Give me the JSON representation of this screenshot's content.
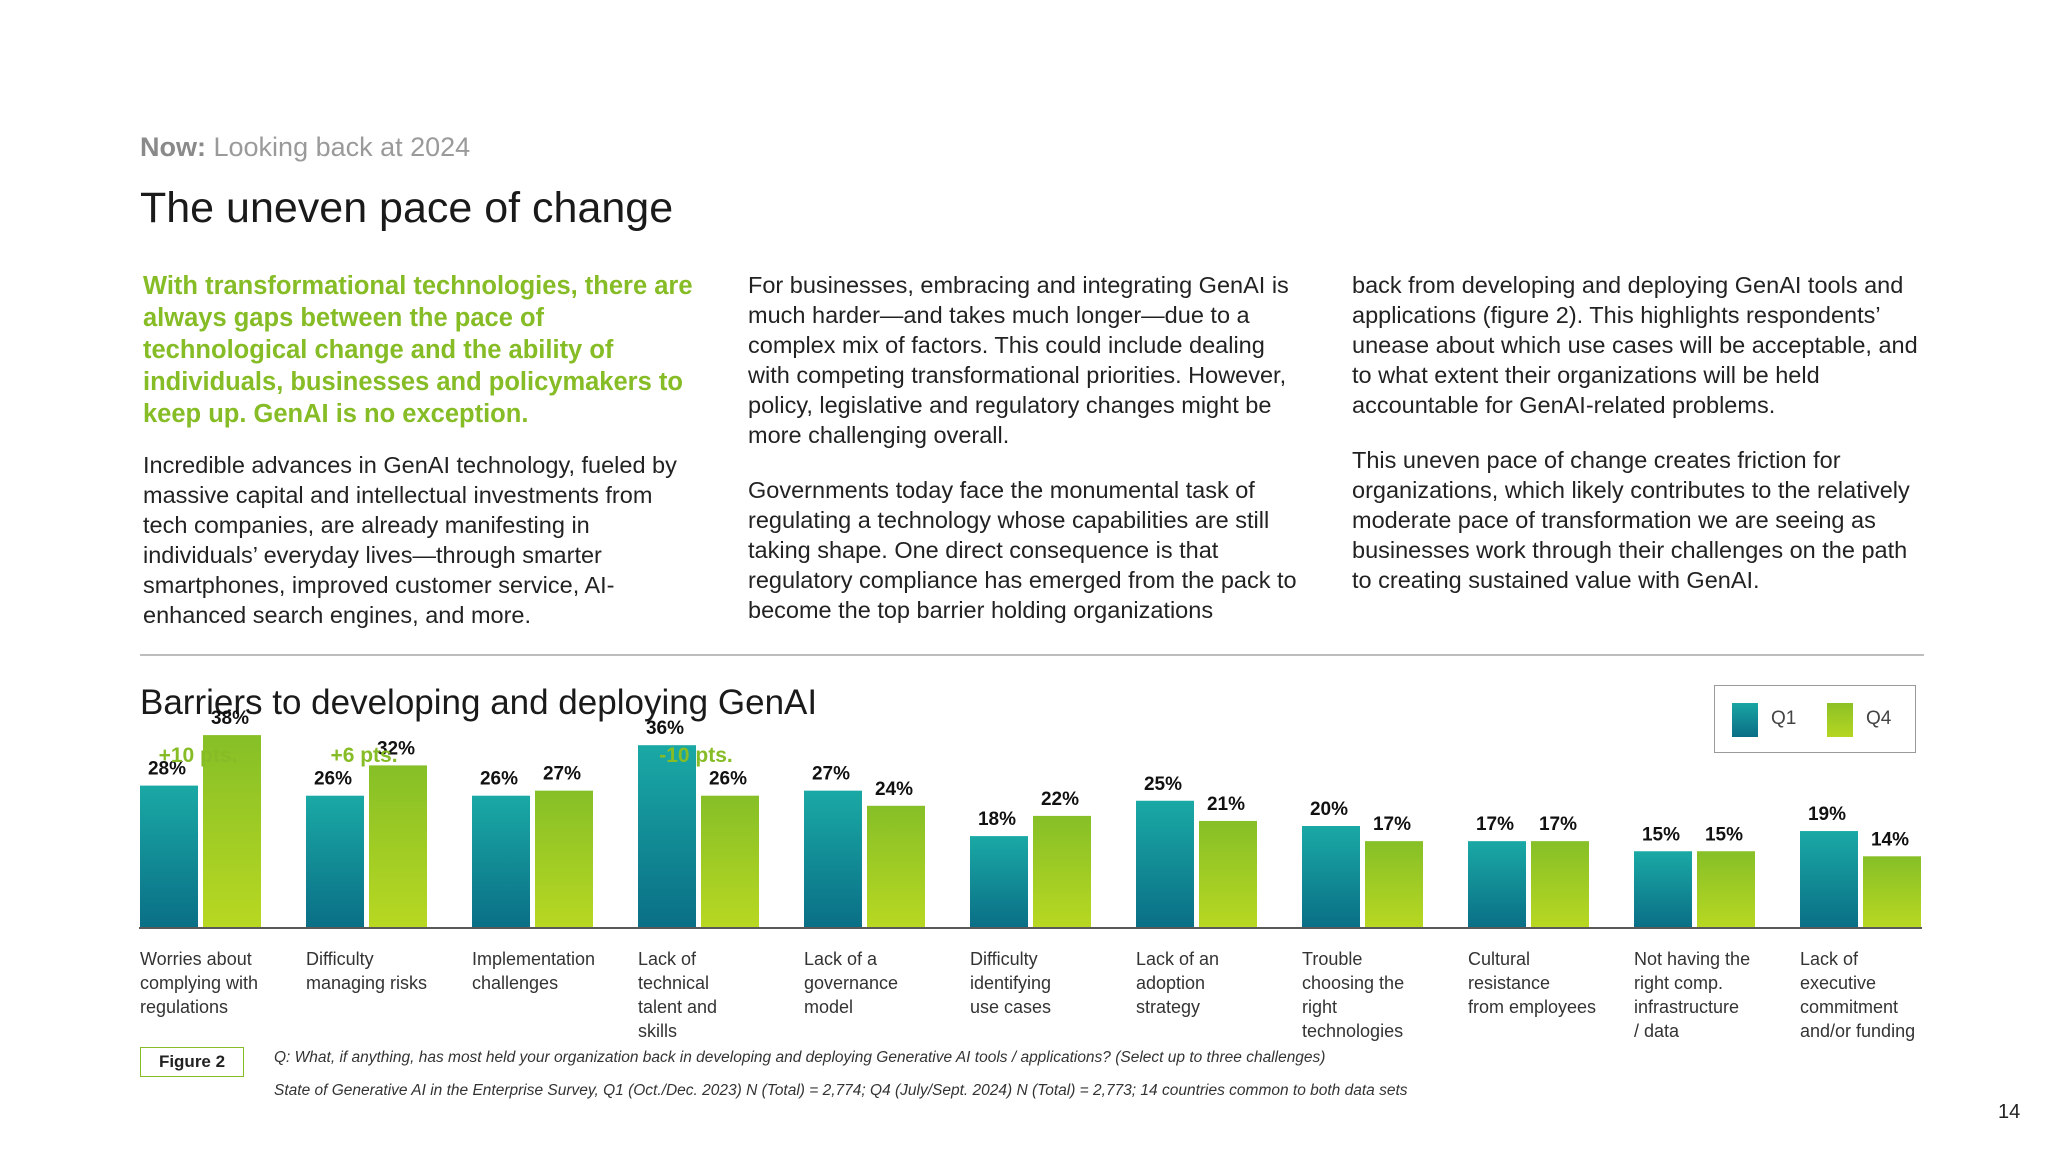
{
  "header": {
    "kicker_bold": "Now:",
    "kicker_text": "Looking back at 2024",
    "title": "The uneven pace of change"
  },
  "body": {
    "lead": "With transformational technologies, there are always gaps between the pace of technological change and the ability of individuals, businesses and policymakers to keep up. GenAI is no exception.",
    "p1": "Incredible advances in GenAI technology, fueled by massive capital and intellectual investments from tech companies, are already manifesting in individuals’ everyday lives—through smarter smartphones, improved customer service, AI-enhanced search engines, and more.",
    "p2": "For businesses, embracing and integrating GenAI is much harder—and takes much longer—due to a complex mix of factors. This could include dealing with competing transformational priorities. However, policy, legislative and regulatory changes might be more challenging overall.",
    "p3": "Governments today face the monumental task of regulating a technology whose capabilities are still taking shape. One direct consequence is that regulatory compliance has emerged from the pack to become the top barrier holding organizations",
    "p4": "back from developing and deploying GenAI tools and applications (figure 2). This highlights respondents’ unease about which use cases will be acceptable, and to what extent their organizations will be held accountable for GenAI-related problems.",
    "p5": "This uneven pace of change creates friction for organizations, which likely contributes to the relatively moderate pace of transformation we are seeing as businesses work through their challenges on the path to creating sustained value with GenAI."
  },
  "chart_data": {
    "type": "bar",
    "title": "Barriers to developing and deploying GenAI",
    "categories": [
      "Worries about complying with regulations",
      "Difficulty managing risks",
      "Implementation challenges",
      "Lack of technical talent and skills",
      "Lack of a governance model",
      "Difficulty identifying use cases",
      "Lack of an adoption strategy",
      "Trouble choosing the right technologies",
      "Cultural resistance from employees",
      "Not having the right comp. infrastructure / data",
      "Lack of executive commitment and/or funding"
    ],
    "series": [
      {
        "name": "Q1",
        "values": [
          28,
          26,
          26,
          36,
          27,
          18,
          25,
          20,
          17,
          15,
          19
        ],
        "color": "#0f8f96"
      },
      {
        "name": "Q4",
        "values": [
          38,
          32,
          27,
          26,
          24,
          22,
          21,
          17,
          17,
          15,
          14
        ],
        "color": "#9bc824"
      }
    ],
    "value_suffix": "%",
    "changes": [
      "+10 pts.",
      "+6 pts.",
      "",
      "-10 pts.",
      "",
      "",
      "",
      "",
      "",
      "",
      ""
    ],
    "change_color": "#86bc25",
    "legend_position": "top-right",
    "grid": false,
    "ylim": [
      0,
      40
    ]
  },
  "legend": {
    "q1": "Q1",
    "q4": "Q4"
  },
  "footer": {
    "figure_label": "Figure 2",
    "question": "Q: What, if anything, has most held your organization back in developing and deploying Generative AI tools / applications? (Select up to three challenges)",
    "source": "State of Generative AI in the Enterprise Survey, Q1 (Oct./Dec. 2023) N (Total) = 2,774; Q4 (July/Sept. 2024) N (Total) = 2,773; 14 countries common to both data sets",
    "page_number": "14"
  }
}
